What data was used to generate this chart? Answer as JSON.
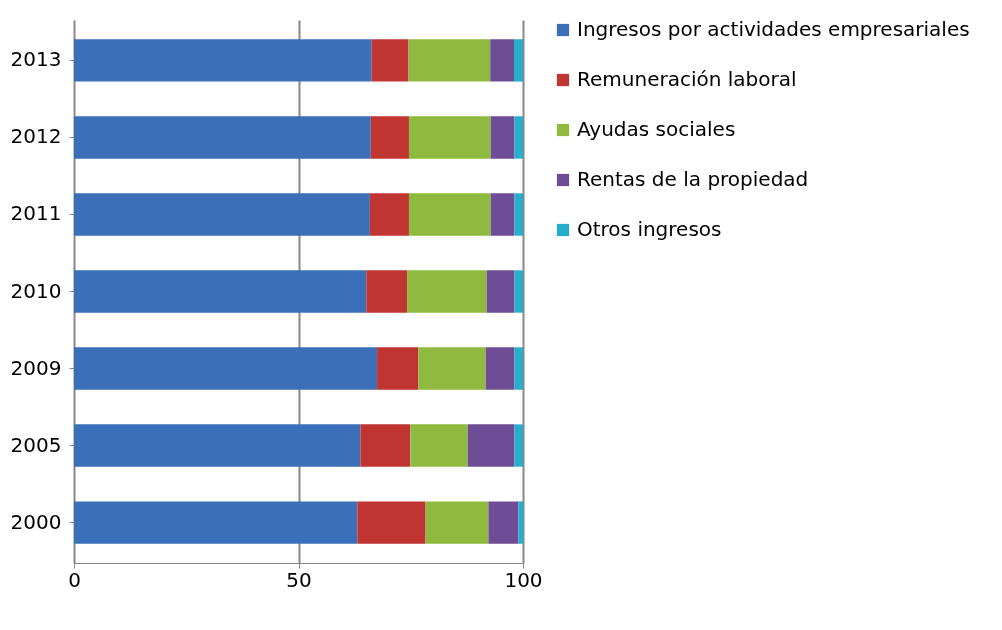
{
  "chart_data": {
    "type": "bar",
    "orientation": "horizontal",
    "stacked": true,
    "categories": [
      "2013",
      "2012",
      "2011",
      "2010",
      "2009",
      "2005",
      "2000"
    ],
    "series": [
      {
        "name": "Ingresos por actividades empresariales",
        "color": "#3b70b8",
        "values": [
          66.3,
          66.1,
          65.9,
          65.1,
          67.5,
          63.8,
          63.1
        ]
      },
      {
        "name": "Remuneración laboral",
        "color": "#c03532",
        "values": [
          8.2,
          8.5,
          8.7,
          9.1,
          9.2,
          11.1,
          15.2
        ]
      },
      {
        "name": "Ayudas sociales",
        "color": "#8fba3f",
        "values": [
          18.2,
          18.2,
          18.2,
          17.7,
          15.0,
          12.8,
          14.0
        ]
      },
      {
        "name": "Rentas de la propiedad",
        "color": "#6e4d96",
        "values": [
          5.3,
          5.3,
          5.3,
          6.2,
          6.4,
          10.4,
          6.7
        ]
      },
      {
        "name": "Otros ingresos",
        "color": "#27aecd",
        "values": [
          2.0,
          1.9,
          1.9,
          1.9,
          1.9,
          1.9,
          1.1
        ]
      }
    ],
    "xlim": [
      0,
      100
    ],
    "xticks": [
      0,
      50,
      100
    ],
    "grid": "x",
    "legend": "right"
  }
}
